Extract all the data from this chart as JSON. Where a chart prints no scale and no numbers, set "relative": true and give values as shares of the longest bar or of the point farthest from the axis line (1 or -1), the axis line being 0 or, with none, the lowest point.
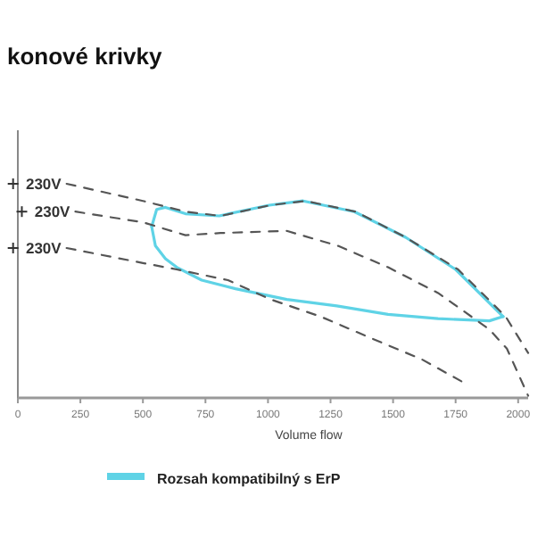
{
  "chart_data": {
    "type": "line",
    "title": "konové krivky",
    "xlabel": "Volume flow",
    "relative": true,
    "xlim": [
      0,
      2040
    ],
    "xticks": [
      0,
      250,
      500,
      750,
      1000,
      1250,
      1500,
      1750,
      2000
    ],
    "grid": false,
    "legend": "bottom",
    "marker": "none",
    "series": [
      {
        "name": "230V",
        "color": "#555555",
        "line_style": "dashed",
        "x": [
          195,
          500,
          670,
          810,
          1010,
          1150,
          1350,
          1550,
          1760,
          1950,
          2040
        ],
        "values": [
          1.0,
          0.92,
          0.87,
          0.85,
          0.9,
          0.92,
          0.87,
          0.75,
          0.6,
          0.38,
          0.21
        ]
      },
      {
        "name": "230V",
        "color": "#555555",
        "line_style": "dashed",
        "x": [
          230,
          500,
          670,
          810,
          1075,
          1280,
          1480,
          1680,
          1885,
          1955,
          2040
        ],
        "values": [
          0.87,
          0.82,
          0.76,
          0.77,
          0.78,
          0.71,
          0.61,
          0.49,
          0.32,
          0.23,
          0.01
        ]
      },
      {
        "name": "230V",
        "color": "#555555",
        "line_style": "dashed",
        "x": [
          195,
          500,
          635,
          840,
          1010,
          1210,
          1410,
          1615,
          1785
        ],
        "values": [
          0.7,
          0.63,
          0.6,
          0.55,
          0.46,
          0.38,
          0.28,
          0.18,
          0.07
        ]
      },
      {
        "name": "Rozsah kompatibilný s ErP",
        "color": "#5fd3e6",
        "line_style": "solid",
        "x": [
          535,
          555,
          590,
          670,
          805,
          1005,
          1140,
          1345,
          1550,
          1750,
          1940
        ],
        "values": [
          0.8,
          0.88,
          0.89,
          0.86,
          0.85,
          0.9,
          0.92,
          0.87,
          0.75,
          0.6,
          0.38
        ]
      },
      {
        "color": "#5fd3e6",
        "line_style": "solid",
        "x": [
          535,
          550,
          590,
          635,
          735,
          870,
          1075,
          1275,
          1480,
          1680,
          1885,
          1940
        ],
        "values": [
          0.8,
          0.71,
          0.65,
          0.61,
          0.55,
          0.51,
          0.46,
          0.43,
          0.39,
          0.37,
          0.36,
          0.38
        ]
      }
    ]
  }
}
